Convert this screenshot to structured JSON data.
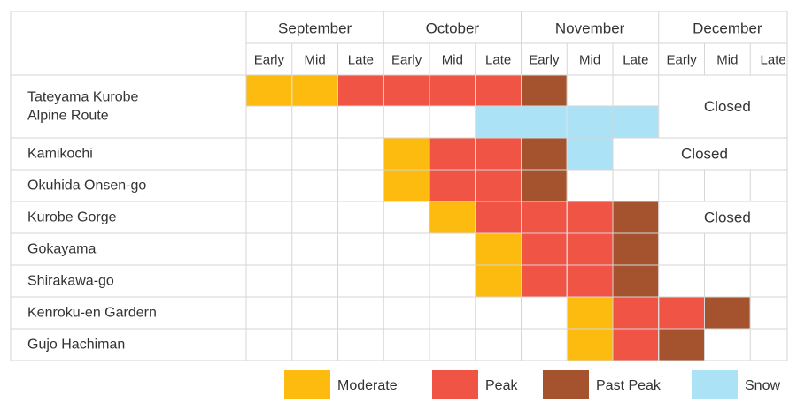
{
  "colors": {
    "moderate": "#FDBA0F",
    "peak": "#F05444",
    "past_peak": "#A5532F",
    "snow": "#ACE2F5",
    "grid": "#D6D6D6"
  },
  "chart_data": {
    "type": "table",
    "months": [
      "September",
      "October",
      "November",
      "December"
    ],
    "periods": [
      "Early",
      "Mid",
      "Late"
    ],
    "legend": [
      {
        "key": "moderate",
        "label": "Moderate"
      },
      {
        "key": "peak",
        "label": "Peak"
      },
      {
        "key": "past_peak",
        "label": "Past Peak"
      },
      {
        "key": "snow",
        "label": "Snow"
      }
    ],
    "rows": [
      {
        "name_lines": [
          "Tateyama Kurobe",
          "Alpine Route"
        ],
        "tall": true,
        "upper": [
          "moderate",
          "moderate",
          "peak",
          "peak",
          "peak",
          "peak",
          "past_peak",
          "",
          "",
          "",
          "",
          ""
        ],
        "lower": [
          "",
          "",
          "",
          "",
          "",
          "snow",
          "snow",
          "snow",
          "snow",
          "",
          "",
          ""
        ],
        "closed_label": "Closed",
        "closed_span": [
          9,
          11
        ]
      },
      {
        "name_lines": [
          "Kamikochi"
        ],
        "cells": [
          "",
          "",
          "",
          "moderate",
          "peak",
          "peak",
          "past_peak",
          "snow",
          "",
          "",
          "",
          ""
        ],
        "closed_label": "Closed",
        "closed_span": [
          8,
          11
        ]
      },
      {
        "name_lines": [
          "Okuhida Onsen-go"
        ],
        "cells": [
          "",
          "",
          "",
          "moderate",
          "peak",
          "peak",
          "past_peak",
          "",
          "",
          "",
          "",
          ""
        ]
      },
      {
        "name_lines": [
          "Kurobe Gorge"
        ],
        "cells": [
          "",
          "",
          "",
          "",
          "moderate",
          "peak",
          "peak",
          "peak",
          "past_peak",
          "",
          "",
          ""
        ],
        "closed_label": "Closed",
        "closed_span": [
          9,
          11
        ]
      },
      {
        "name_lines": [
          "Gokayama"
        ],
        "cells": [
          "",
          "",
          "",
          "",
          "",
          "moderate",
          "peak",
          "peak",
          "past_peak",
          "",
          "",
          ""
        ]
      },
      {
        "name_lines": [
          "Shirakawa-go"
        ],
        "cells": [
          "",
          "",
          "",
          "",
          "",
          "moderate",
          "peak",
          "peak",
          "past_peak",
          "",
          "",
          ""
        ]
      },
      {
        "name_lines": [
          "Kenroku-en Gardern"
        ],
        "cells": [
          "",
          "",
          "",
          "",
          "",
          "",
          "",
          "moderate",
          "peak",
          "peak",
          "past_peak",
          ""
        ]
      },
      {
        "name_lines": [
          "Gujo Hachiman"
        ],
        "cells": [
          "",
          "",
          "",
          "",
          "",
          "",
          "",
          "moderate",
          "peak",
          "past_peak",
          "",
          ""
        ]
      }
    ]
  }
}
